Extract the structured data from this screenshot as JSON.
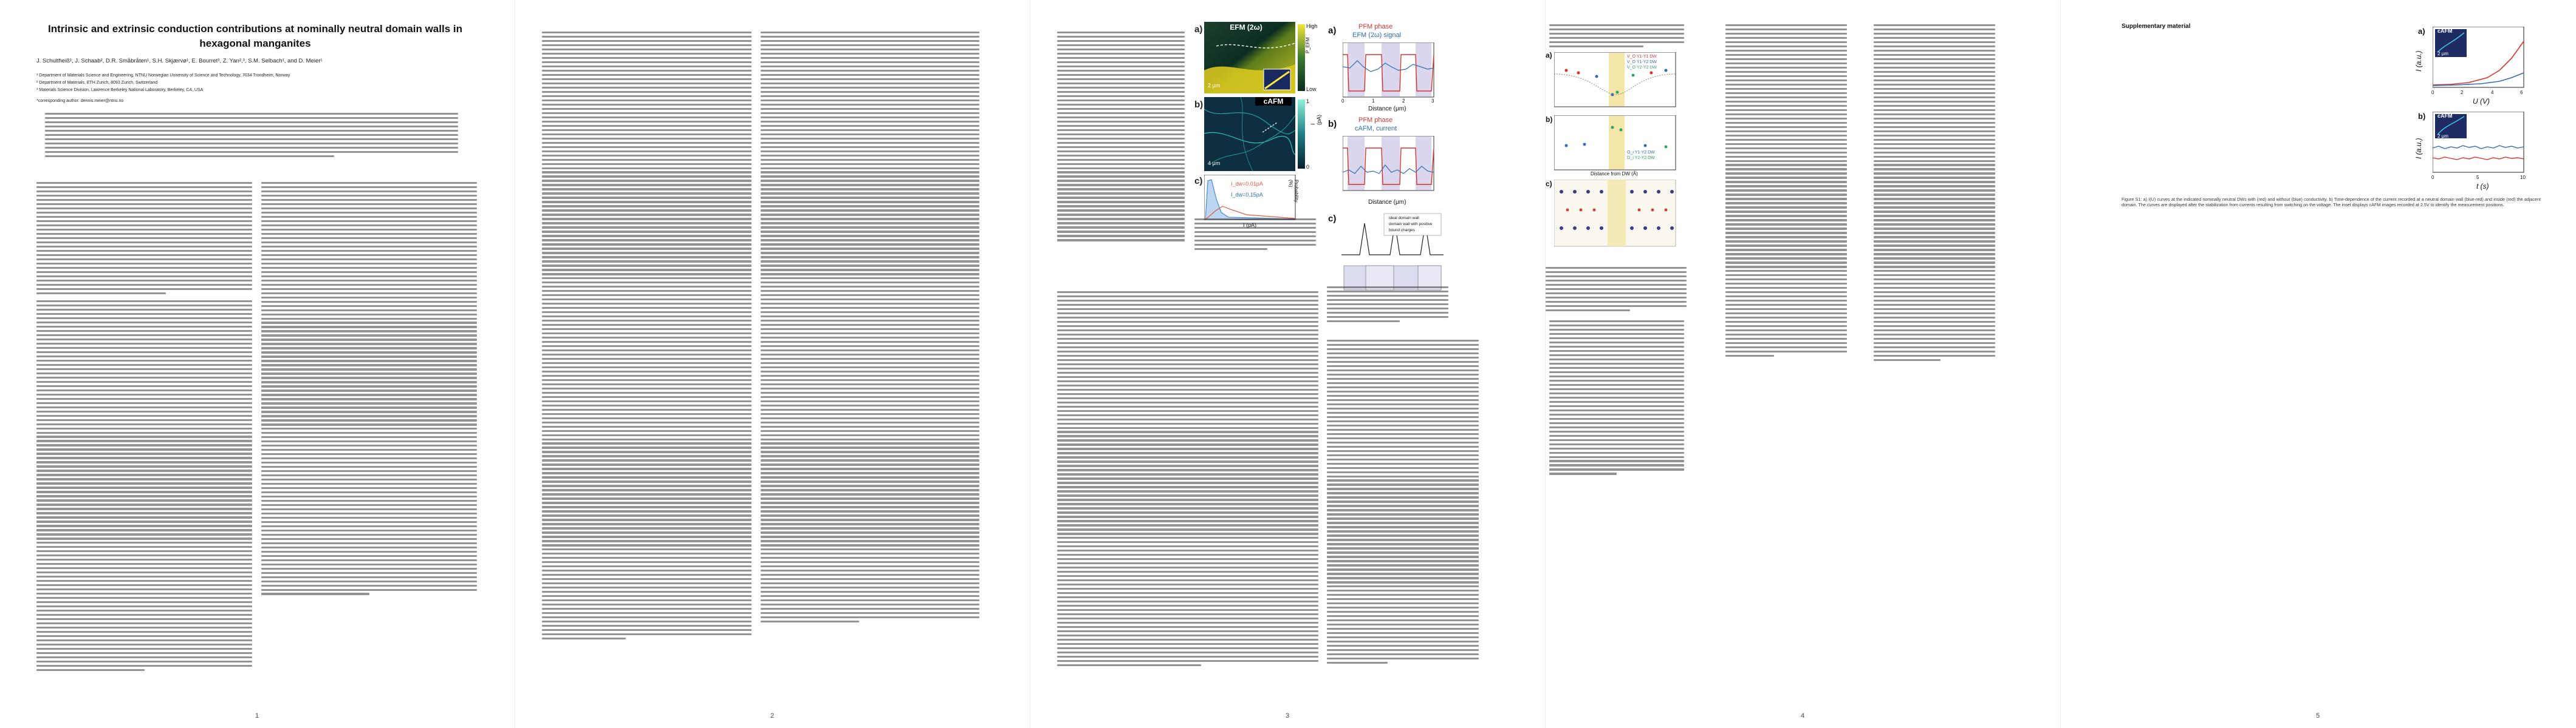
{
  "paper": {
    "title": "Intrinsic and extrinsic conduction contributions at nominally neutral domain walls in hexagonal manganites",
    "authors": "J. Schultheiß¹, J. Schaab², D.R. Småbråten¹, S.H. Skjærvø¹, E. Bourret³, Z. Yan²,³, S.M. Selbach¹, and D. Meier¹",
    "affiliations": [
      "¹ Department of Materials Science and Engineering, NTNU Norwegian University of Science and Technology, 7034 Trondheim, Norway",
      "² Department of Materials, ETH Zurich, 8093 Zurich, Switzerland",
      "³ Materials Science Division, Lawrence Berkeley National Laboratory, Berkeley, CA, USA"
    ],
    "correspondence": "*corresponding author: dennis.meier@ntnu.no",
    "page_numbers": [
      "1",
      "2",
      "3",
      "4",
      "5"
    ]
  },
  "fig1": {
    "a_label": "a)",
    "a_title": "EFM (2ω)",
    "a_high": "High",
    "a_low": "Low",
    "a_scale": "2 μm",
    "a_axis": "P_EFM",
    "b_label": "b)",
    "b_title": "cAFM",
    "b_scale": "4 μm",
    "b_axis": "I (pA)",
    "b_ticks": [
      "0",
      "1"
    ],
    "c_label": "c)",
    "c_ann1": "I_dw=0.01pA",
    "c_ann2": "I_dw=0.15pA",
    "c_xlabel": "I (pA)",
    "c_ylabel": "Probability (%)"
  },
  "fig2": {
    "a_label": "a)",
    "a_title1": "PFM phase",
    "a_title2": "EFM (2ω) signal",
    "a_xlabel": "Distance (μm)",
    "b_label": "b)",
    "b_title1": "PFM phase",
    "b_title2": "cAFM, current",
    "b_xlabel": "Distance (μm)",
    "c_label": "c)",
    "c_legend": [
      "ideal domain wall",
      "domain wall with positive",
      "bound charges"
    ],
    "x_ticks": [
      "0",
      "1",
      "2",
      "3"
    ]
  },
  "fig3": {
    "a_label": "a)",
    "b_label": "b)",
    "c_label": "c)",
    "xlabel": "Distance from DW (Å)",
    "legend_a": [
      "V_O Y1-Y1 DW",
      "V_O Y1-Y2 DW",
      "V_O Y2-Y2 DW"
    ],
    "legend_b": [
      "O_i Y1-Y2 DW",
      "O_i Y2-Y2 DW"
    ]
  },
  "supp": {
    "heading": "Supplementary material",
    "a_label": "a)",
    "a_title": "cAFM",
    "a_scale": "2 μm",
    "a_xlabel": "U (V)",
    "a_ylabel": "I (a.u.)",
    "b_label": "b)",
    "b_title": "cAFM",
    "b_scale": "2 μm",
    "b_xlabel": "t (s)",
    "b_ylabel": "I (a.u.)",
    "a_xticks": [
      "0",
      "2",
      "4",
      "6"
    ],
    "b_xticks": [
      "0",
      "5",
      "10"
    ],
    "caption": "Figure S1: a) I(U) curves at the indicated nominally neutral DWs with (red) and without (blue) conductivity. b) Time-dependence of the current recorded at a neutral domain wall (blue-red) and inside (red) the adjacent domain. The curves are displayed after the stabilization from currents resulting from switching on the voltage. The inset displays cAFM images recorded at 2.5V to identify the measurement positions."
  },
  "colors": {
    "red": "#d9342b",
    "blue": "#2f6db5",
    "purple": "#7a4ea8",
    "green_dark": "#0f3b2e",
    "yellow": "#e9d62a"
  }
}
